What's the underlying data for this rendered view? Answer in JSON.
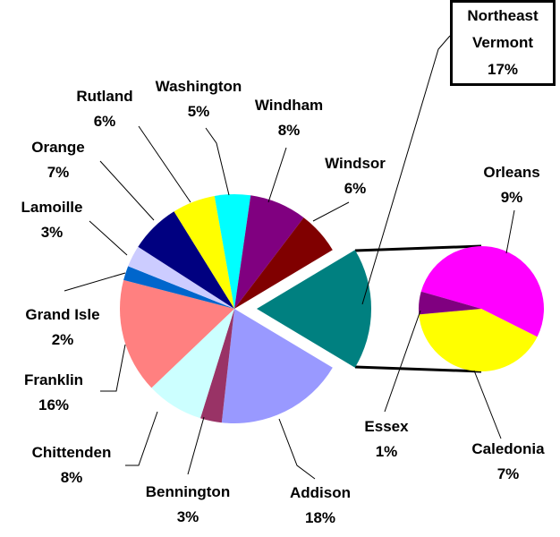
{
  "chart_data": {
    "type": "pie",
    "categories": [
      "Northeast Vermont",
      "Addison",
      "Bennington",
      "Chittenden",
      "Franklin",
      "Grand Isle",
      "Lamoille",
      "Orange",
      "Rutland",
      "Washington",
      "Windham",
      "Windsor"
    ],
    "values": [
      17,
      18,
      3,
      8,
      16,
      2,
      3,
      7,
      6,
      5,
      8,
      6
    ],
    "value_labels": [
      "17%",
      "18%",
      "3%",
      "8%",
      "16%",
      "2%",
      "3%",
      "7%",
      "6%",
      "5%",
      "8%",
      "6%"
    ],
    "colors": [
      "#008080",
      "#9999ff",
      "#993366",
      "#ccffff",
      "#ff8080",
      "#0066cc",
      "#ccccff",
      "#000080",
      "#ffff00",
      "#00ffff",
      "#800080",
      "#800000"
    ],
    "secondary": {
      "categories": [
        "Orleans",
        "Caledonia",
        "Essex"
      ],
      "values": [
        9,
        7,
        1
      ],
      "value_labels": [
        "9%",
        "7%",
        "1%"
      ],
      "colors": [
        "#ff00ff",
        "#ffff00",
        "#800080"
      ]
    }
  }
}
